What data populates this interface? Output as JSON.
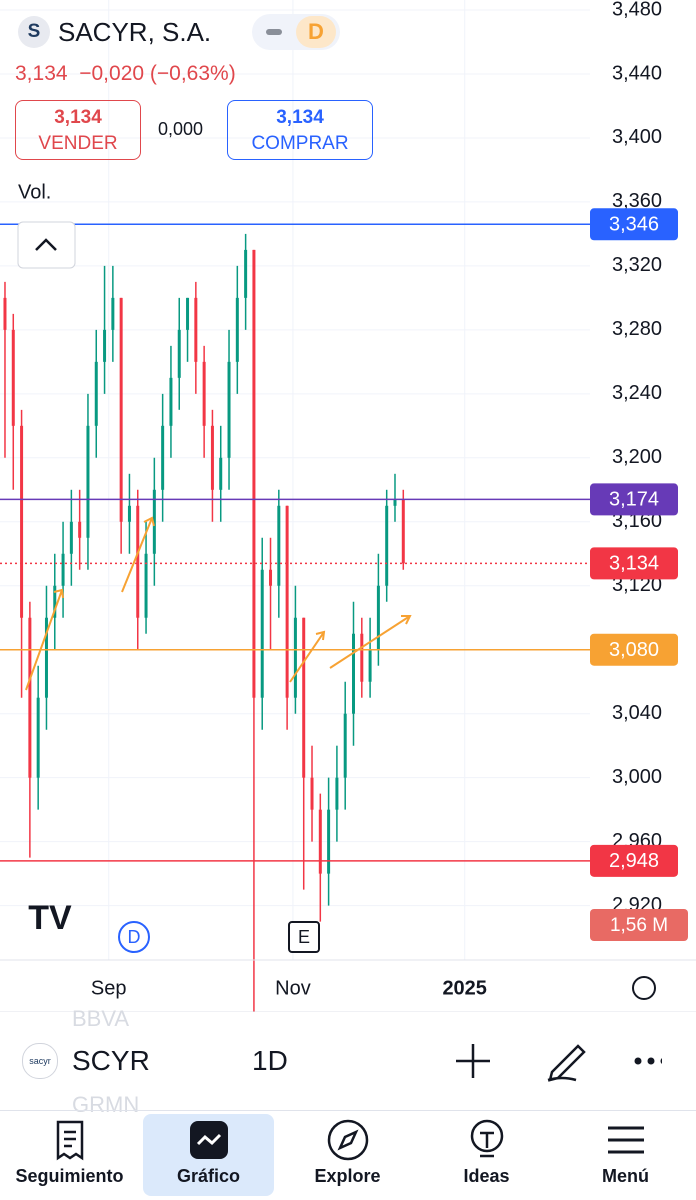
{
  "header": {
    "logo": "S",
    "name": "SACYR, S.A.",
    "status": "D",
    "price": "3,134",
    "change": "−0,020",
    "change_pct": "(−0,63%)",
    "sell_price": "3,134",
    "sell_label": "VENDER",
    "spread": "0,000",
    "buy_price": "3,134",
    "buy_label": "COMPRAR"
  },
  "chart_data": {
    "type": "candlestick",
    "volume_title": "Vol.",
    "volume_label": "1,56 M",
    "event_markers": [
      "D",
      "E"
    ],
    "open": [
      3.3,
      3.28,
      3.22,
      3.1,
      3.0,
      3.05,
      3.1,
      3.12,
      3.14,
      3.16,
      3.15,
      3.22,
      3.26,
      3.28,
      3.3,
      3.16,
      3.17,
      3.1,
      3.14,
      3.18,
      3.22,
      3.25,
      3.28,
      3.3,
      3.26,
      3.22,
      3.18,
      3.2,
      3.26,
      3.3,
      3.33,
      3.05,
      3.13,
      3.12,
      3.17,
      3.05,
      3.1,
      3.0,
      2.98,
      2.94,
      2.98,
      3.0,
      3.04,
      3.09,
      3.06,
      3.08,
      3.12,
      3.17,
      3.174
    ],
    "high": [
      3.31,
      3.29,
      3.23,
      3.11,
      3.07,
      3.12,
      3.14,
      3.16,
      3.18,
      3.18,
      3.24,
      3.28,
      3.32,
      3.32,
      3.3,
      3.19,
      3.18,
      3.16,
      3.2,
      3.24,
      3.27,
      3.3,
      3.3,
      3.31,
      3.27,
      3.23,
      3.22,
      3.28,
      3.32,
      3.34,
      3.33,
      3.15,
      3.15,
      3.18,
      3.17,
      3.12,
      3.1,
      3.02,
      2.99,
      3.0,
      3.02,
      3.06,
      3.11,
      3.1,
      3.1,
      3.14,
      3.18,
      3.19,
      3.18
    ],
    "low": [
      3.2,
      3.18,
      3.05,
      2.95,
      2.98,
      3.03,
      3.08,
      3.1,
      3.12,
      3.13,
      3.13,
      3.2,
      3.24,
      3.26,
      3.14,
      3.14,
      3.08,
      3.09,
      3.12,
      3.16,
      3.2,
      3.23,
      3.26,
      3.24,
      3.2,
      3.16,
      3.16,
      3.18,
      3.24,
      3.28,
      2.85,
      3.03,
      3.08,
      3.1,
      3.03,
      3.04,
      2.93,
      2.96,
      2.91,
      2.92,
      2.96,
      2.98,
      3.02,
      3.05,
      3.05,
      3.07,
      3.11,
      3.16,
      3.13
    ],
    "close": [
      3.28,
      3.22,
      3.1,
      3.0,
      3.05,
      3.1,
      3.12,
      3.14,
      3.16,
      3.15,
      3.22,
      3.26,
      3.28,
      3.3,
      3.16,
      3.17,
      3.1,
      3.14,
      3.18,
      3.22,
      3.25,
      3.28,
      3.3,
      3.26,
      3.22,
      3.18,
      3.2,
      3.26,
      3.3,
      3.33,
      3.05,
      3.13,
      3.12,
      3.17,
      3.05,
      3.1,
      3.0,
      2.98,
      2.94,
      2.98,
      3.0,
      3.04,
      3.09,
      3.06,
      3.08,
      3.12,
      3.17,
      3.174,
      3.134
    ],
    "up_color": "#089981",
    "down_color": "#f23645",
    "xlim": [
      -0.6,
      70.5
    ],
    "xticks": [
      {
        "value": 12.5,
        "label": "Sep"
      },
      {
        "value": 34.7,
        "label": "Nov"
      },
      {
        "value": 55.4,
        "label": "2025"
      }
    ],
    "ylim": [
      2.886,
      3.48625
    ],
    "yticks": [
      {
        "value": 3.48,
        "label": "3,480"
      },
      {
        "value": 3.44,
        "label": "3,440"
      },
      {
        "value": 3.4,
        "label": "3,400"
      },
      {
        "value": 3.36,
        "label": "3,360"
      },
      {
        "value": 3.32,
        "label": "3,320"
      },
      {
        "value": 3.28,
        "label": "3,280"
      },
      {
        "value": 3.24,
        "label": "3,240"
      },
      {
        "value": 3.2,
        "label": "3,200"
      },
      {
        "value": 3.16,
        "label": "3,160"
      },
      {
        "value": 3.12,
        "label": "3,120"
      },
      {
        "value": 3.08,
        "label": "3,080"
      },
      {
        "value": 3.04,
        "label": "3,040"
      },
      {
        "value": 3.0,
        "label": "3,000"
      },
      {
        "value": 2.96,
        "label": "2,960"
      },
      {
        "value": 2.92,
        "label": "2,920"
      }
    ],
    "levels": [
      {
        "value": 3.346,
        "label": "3,346",
        "color": "#2962ff"
      },
      {
        "value": 3.174,
        "label": "3,174",
        "color": "#673ab7"
      },
      {
        "value": 3.134,
        "label": "3,134",
        "color": "#f23645",
        "dotted": true
      },
      {
        "value": 3.08,
        "label": "3,080",
        "color": "#f7a233"
      },
      {
        "value": 2.948,
        "label": "2,948",
        "color": "#f23645"
      }
    ]
  },
  "toolbar": {
    "logo": "sacyr",
    "symbol": "SCYR",
    "interval": "1D",
    "ghost_1": "BBVA",
    "ghost_2": "GRMN"
  },
  "tabs": [
    "Seguimiento",
    "Gráfico",
    "Explore",
    "Ideas",
    "Menú"
  ]
}
